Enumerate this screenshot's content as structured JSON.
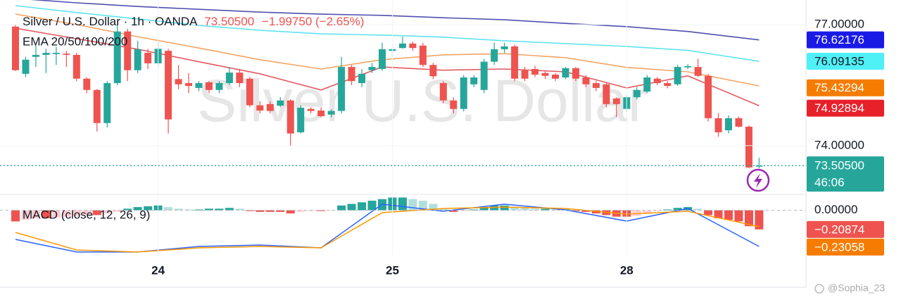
{
  "chart_data": [
    {
      "type": "candlestick",
      "title": "Silver / U.S. Dollar · 1h · OANDA",
      "last_price": {
        "value": 73.505,
        "label": "73.50500"
      },
      "change_label": "−1.99750 (−2.65%)",
      "countdown": "46:06",
      "indicator_label": "EMA 20/50/100/200",
      "watermark": "Silver U.S. Dollar",
      "up_color": "#26a69a",
      "down_color": "#ef5350",
      "xlim": [
        -1.52,
        77.6
      ],
      "xticks": [
        {
          "value": 14,
          "label": "24"
        },
        {
          "value": 37,
          "label": "25"
        },
        {
          "value": 60,
          "label": "28"
        }
      ],
      "ylim": [
        72.81,
        77.61
      ],
      "yticks": [
        {
          "value": 77,
          "label": "77.00000"
        },
        {
          "value": 74,
          "label": "74.00000"
        }
      ],
      "grid": true,
      "open": [
        76.95,
        75.78,
        76.2,
        76.25,
        76.27,
        76.28,
        76.25,
        75.66,
        75.38,
        74.56,
        75.55,
        76.83,
        75.87,
        76.3,
        76.04,
        76.35,
        75.65,
        75.55,
        75.43,
        75.57,
        75.38,
        75.55,
        75.81,
        75.66,
        75.0,
        75.03,
        74.99,
        75.12,
        74.33,
        74.91,
        74.87,
        74.77,
        74.86,
        75.95,
        75.55,
        75.87,
        75.9,
        76.35,
        76.42,
        76.53,
        76.48,
        76.0,
        75.55,
        75.12,
        74.91,
        75.52,
        75.38,
        76.08,
        76.39,
        76.46,
        75.87,
        75.9,
        75.8,
        75.76,
        75.69,
        75.92,
        75.69,
        75.55,
        75.52,
        75.17,
        74.91,
        75.2,
        75.34,
        75.66,
        75.55,
        75.52,
        75.94,
        75.95,
        75.73,
        74.68,
        74.38,
        74.68,
        74.47,
        73.48
      ],
      "high": [
        77.0,
        76.2,
        76.5,
        76.4,
        76.45,
        76.35,
        76.3,
        75.7,
        75.4,
        75.6,
        77.0,
        76.9,
        76.6,
        76.4,
        76.6,
        76.4,
        76.0,
        75.8,
        75.6,
        75.6,
        75.6,
        75.95,
        75.9,
        75.7,
        75.1,
        75.1,
        75.2,
        75.15,
        75.0,
        74.95,
        74.95,
        74.9,
        76.2,
        76.0,
        75.9,
        76.05,
        76.55,
        76.45,
        76.7,
        76.58,
        76.55,
        76.05,
        75.6,
        75.2,
        75.75,
        75.75,
        76.15,
        76.55,
        76.55,
        76.5,
        75.95,
        75.98,
        75.85,
        75.8,
        75.95,
        75.95,
        75.75,
        75.6,
        75.55,
        75.2,
        75.25,
        75.45,
        75.75,
        75.7,
        75.6,
        76.0,
        76.02,
        76.15,
        75.78,
        74.8,
        74.75,
        74.72,
        74.5,
        73.7
      ],
      "low": [
        75.85,
        75.7,
        75.95,
        75.8,
        76.0,
        75.95,
        75.6,
        75.3,
        74.35,
        74.45,
        75.5,
        75.6,
        75.8,
        75.9,
        75.95,
        74.3,
        75.4,
        75.3,
        75.35,
        75.3,
        75.3,
        75.5,
        75.45,
        74.95,
        74.8,
        74.8,
        74.95,
        73.98,
        74.3,
        74.8,
        74.7,
        74.7,
        74.8,
        75.5,
        75.45,
        75.8,
        75.85,
        76.2,
        76.4,
        76.35,
        75.95,
        75.65,
        75.05,
        74.8,
        74.85,
        75.45,
        75.3,
        76.0,
        76.3,
        75.6,
        75.6,
        75.7,
        75.65,
        75.6,
        75.65,
        75.6,
        75.45,
        75.35,
        74.95,
        74.7,
        74.85,
        75.15,
        75.3,
        75.5,
        75.42,
        75.48,
        75.9,
        75.7,
        74.6,
        74.22,
        74.3,
        74.45,
        73.44,
        73.44
      ],
      "close": [
        75.87,
        76.13,
        76.25,
        76.3,
        76.3,
        76.25,
        75.66,
        75.38,
        74.56,
        75.55,
        76.83,
        75.87,
        76.39,
        76.04,
        76.4,
        74.65,
        75.52,
        75.48,
        75.55,
        75.38,
        75.55,
        75.81,
        75.55,
        75.0,
        74.87,
        74.86,
        75.12,
        74.3,
        74.94,
        74.86,
        74.73,
        74.86,
        75.95,
        75.6,
        75.78,
        75.95,
        76.39,
        76.39,
        76.53,
        76.42,
        76.0,
        75.72,
        75.12,
        74.91,
        75.69,
        75.69,
        76.08,
        76.39,
        76.46,
        75.66,
        75.66,
        75.76,
        75.73,
        75.66,
        75.92,
        75.66,
        75.52,
        75.43,
        75.03,
        75.03,
        75.2,
        75.38,
        75.69,
        75.55,
        75.48,
        75.95,
        75.97,
        75.73,
        74.68,
        74.33,
        74.68,
        74.47,
        73.46,
        73.505
      ],
      "series": [
        {
          "color": "#5050b0",
          "text_color": "#ffffff",
          "x": [
            0,
            6,
            12,
            18,
            24,
            30,
            36,
            42,
            48,
            54,
            60,
            66,
            73
          ],
          "values": [
            77.65,
            77.54,
            77.45,
            77.38,
            77.31,
            77.26,
            77.23,
            77.17,
            77.12,
            77.03,
            76.95,
            76.83,
            76.62
          ],
          "tag": {
            "value": 76.62176,
            "label": "76.62176"
          },
          "tag_color": "#1a1ae6"
        },
        {
          "color": "#5fe3ee",
          "text_color": "#131722",
          "x": [
            0,
            6,
            12,
            18,
            24,
            30,
            36,
            42,
            48,
            54,
            60,
            66,
            73
          ],
          "values": [
            77.47,
            77.3,
            77.14,
            76.98,
            76.86,
            76.77,
            76.74,
            76.69,
            76.6,
            76.53,
            76.46,
            76.36,
            76.09
          ],
          "tag": {
            "value": 76.09135,
            "label": "76.09135"
          },
          "tag_color": "#4ff0f6"
        },
        {
          "color": "#f2a566",
          "text_color": "#ffffff",
          "x": [
            0,
            6,
            12,
            18,
            24,
            30,
            36,
            42,
            48,
            54,
            60,
            66,
            73
          ],
          "values": [
            77.26,
            77.0,
            76.7,
            76.42,
            76.13,
            75.9,
            76.13,
            76.25,
            76.28,
            76.18,
            75.94,
            75.83,
            75.48
          ],
          "tag": {
            "value": 75.43294,
            "label": "75.43294"
          },
          "tag_color": "#f57c00"
        },
        {
          "color": "#e35a63",
          "text_color": "#ffffff",
          "x": [
            0,
            6,
            12,
            18,
            24,
            30,
            36,
            42,
            48,
            54,
            60,
            66,
            73
          ],
          "values": [
            76.91,
            76.65,
            76.39,
            76.08,
            75.78,
            75.38,
            75.95,
            75.87,
            75.9,
            75.83,
            75.43,
            75.73,
            74.99
          ],
          "tag": {
            "value": 74.92894,
            "label": "74.92894"
          },
          "tag_color": "#e8202a"
        }
      ]
    },
    {
      "type": "macd",
      "title": "MACD (close, 12, 26, 9)",
      "ylim": [
        -0.28,
        0.1
      ],
      "yticks": [
        {
          "value": 0,
          "label": "0.00000"
        }
      ],
      "histogram": [
        -0.07,
        -0.06,
        -0.05,
        -0.05,
        -0.045,
        -0.04,
        -0.035,
        -0.03,
        -0.03,
        -0.02,
        -0.01,
        0.01,
        0.02,
        0.025,
        0.03,
        0.02,
        0.01,
        0.005,
        0.005,
        0.01,
        0.01,
        0.015,
        0.01,
        -0.005,
        -0.01,
        -0.01,
        -0.01,
        -0.02,
        -0.01,
        -0.005,
        -0.005,
        -0.003,
        0.03,
        0.04,
        0.05,
        0.06,
        0.07,
        0.08,
        0.08,
        0.07,
        0.06,
        0.04,
        0.01,
        -0.01,
        -0.005,
        0.005,
        0.02,
        0.03,
        0.03,
        0.02,
        0.015,
        0.01,
        0.01,
        0.005,
        0.005,
        -0.005,
        -0.01,
        -0.02,
        -0.03,
        -0.04,
        -0.04,
        -0.035,
        -0.02,
        -0.005,
        0.005,
        0.015,
        0.02,
        0.01,
        -0.03,
        -0.05,
        -0.06,
        -0.07,
        -0.1,
        -0.12
      ],
      "histogram_colors": {
        "up_strong": "#26a69a",
        "up_weak": "#b2dfdb",
        "down_strong": "#ef5350",
        "down_weak": "#ffcdd2"
      },
      "macd": {
        "color": "#2962ff",
        "x": [
          0,
          6,
          12,
          18,
          24,
          30,
          36,
          42,
          48,
          54,
          60,
          66,
          73
        ],
        "values": [
          -0.183,
          -0.262,
          -0.262,
          -0.227,
          -0.218,
          -0.236,
          0.038,
          -0.006,
          0.038,
          0.003,
          -0.068,
          0.011,
          -0.227
        ]
      },
      "signal": {
        "color": "#ff9800",
        "x": [
          0,
          6,
          12,
          18,
          24,
          30,
          36,
          42,
          48,
          54,
          60,
          66,
          73
        ],
        "values": [
          -0.139,
          -0.249,
          -0.262,
          -0.236,
          -0.227,
          -0.236,
          -0.015,
          0.011,
          0.02,
          0.011,
          -0.024,
          -0.006,
          -0.103
        ]
      },
      "tags": [
        {
          "value": -0.20874,
          "label": "−0.20874",
          "color": "#ef5350"
        },
        {
          "value": -0.23058,
          "label": "−0.23058",
          "color": "#f57c00"
        }
      ]
    }
  ],
  "footer": {
    "credit": "@Sophia_23"
  }
}
